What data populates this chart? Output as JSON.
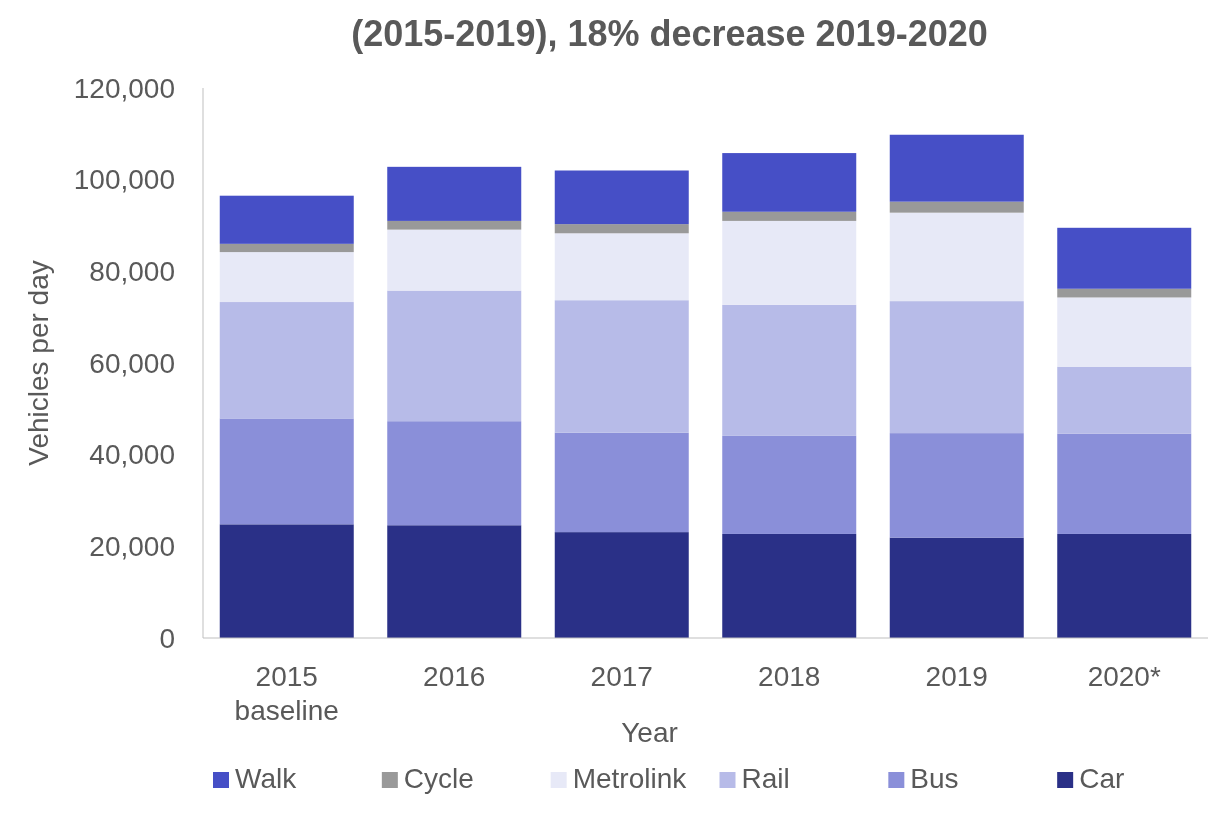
{
  "chart_data": {
    "type": "bar",
    "stacked": true,
    "title": "(2015-2019), 18% decrease 2019-2020",
    "xlabel": "Year",
    "ylabel": "Vehicles per day",
    "categories": [
      "2015 baseline",
      "2016",
      "2017",
      "2018",
      "2019",
      "2020*"
    ],
    "series": [
      {
        "name": "Car",
        "color": "#2a3087",
        "values": [
          24800.0,
          24600.0,
          23100.0,
          22700.0,
          21900.0,
          22700.0
        ]
      },
      {
        "name": "Bus",
        "color": "#8a8fd9",
        "values": [
          23100.0,
          22700.0,
          21700.0,
          21400.0,
          22800.0,
          21900.0
        ]
      },
      {
        "name": "Rail",
        "color": "#b7bbe8",
        "values": [
          25400.0,
          28500.0,
          28900.0,
          28600.0,
          28800.0,
          14600.0
        ]
      },
      {
        "name": "Metrolink",
        "color": "#e7e9f7",
        "values": [
          10900.0,
          13300.0,
          14600.0,
          18300.0,
          19300.0,
          15100.0
        ]
      },
      {
        "name": "Cycle",
        "color": "#999999",
        "values": [
          1800.0,
          1900.0,
          2000.0,
          2000.0,
          2400.0,
          1900.0
        ]
      },
      {
        "name": "Walk",
        "color": "#464fc6",
        "values": [
          10500.0,
          11800.0,
          11700.0,
          12800.0,
          14600.0,
          13300.0
        ]
      }
    ],
    "ylim": [
      0,
      120000
    ],
    "yticks": [
      {
        "value": 0,
        "label": "0"
      },
      {
        "value": 20000,
        "label": "20,000"
      },
      {
        "value": 40000,
        "label": "40,000"
      },
      {
        "value": 60000,
        "label": "60,000"
      },
      {
        "value": 80000,
        "label": "80,000"
      },
      {
        "value": 100000,
        "label": "100,000"
      },
      {
        "value": 120000,
        "label": "120,000"
      }
    ],
    "legend": "bottom"
  }
}
